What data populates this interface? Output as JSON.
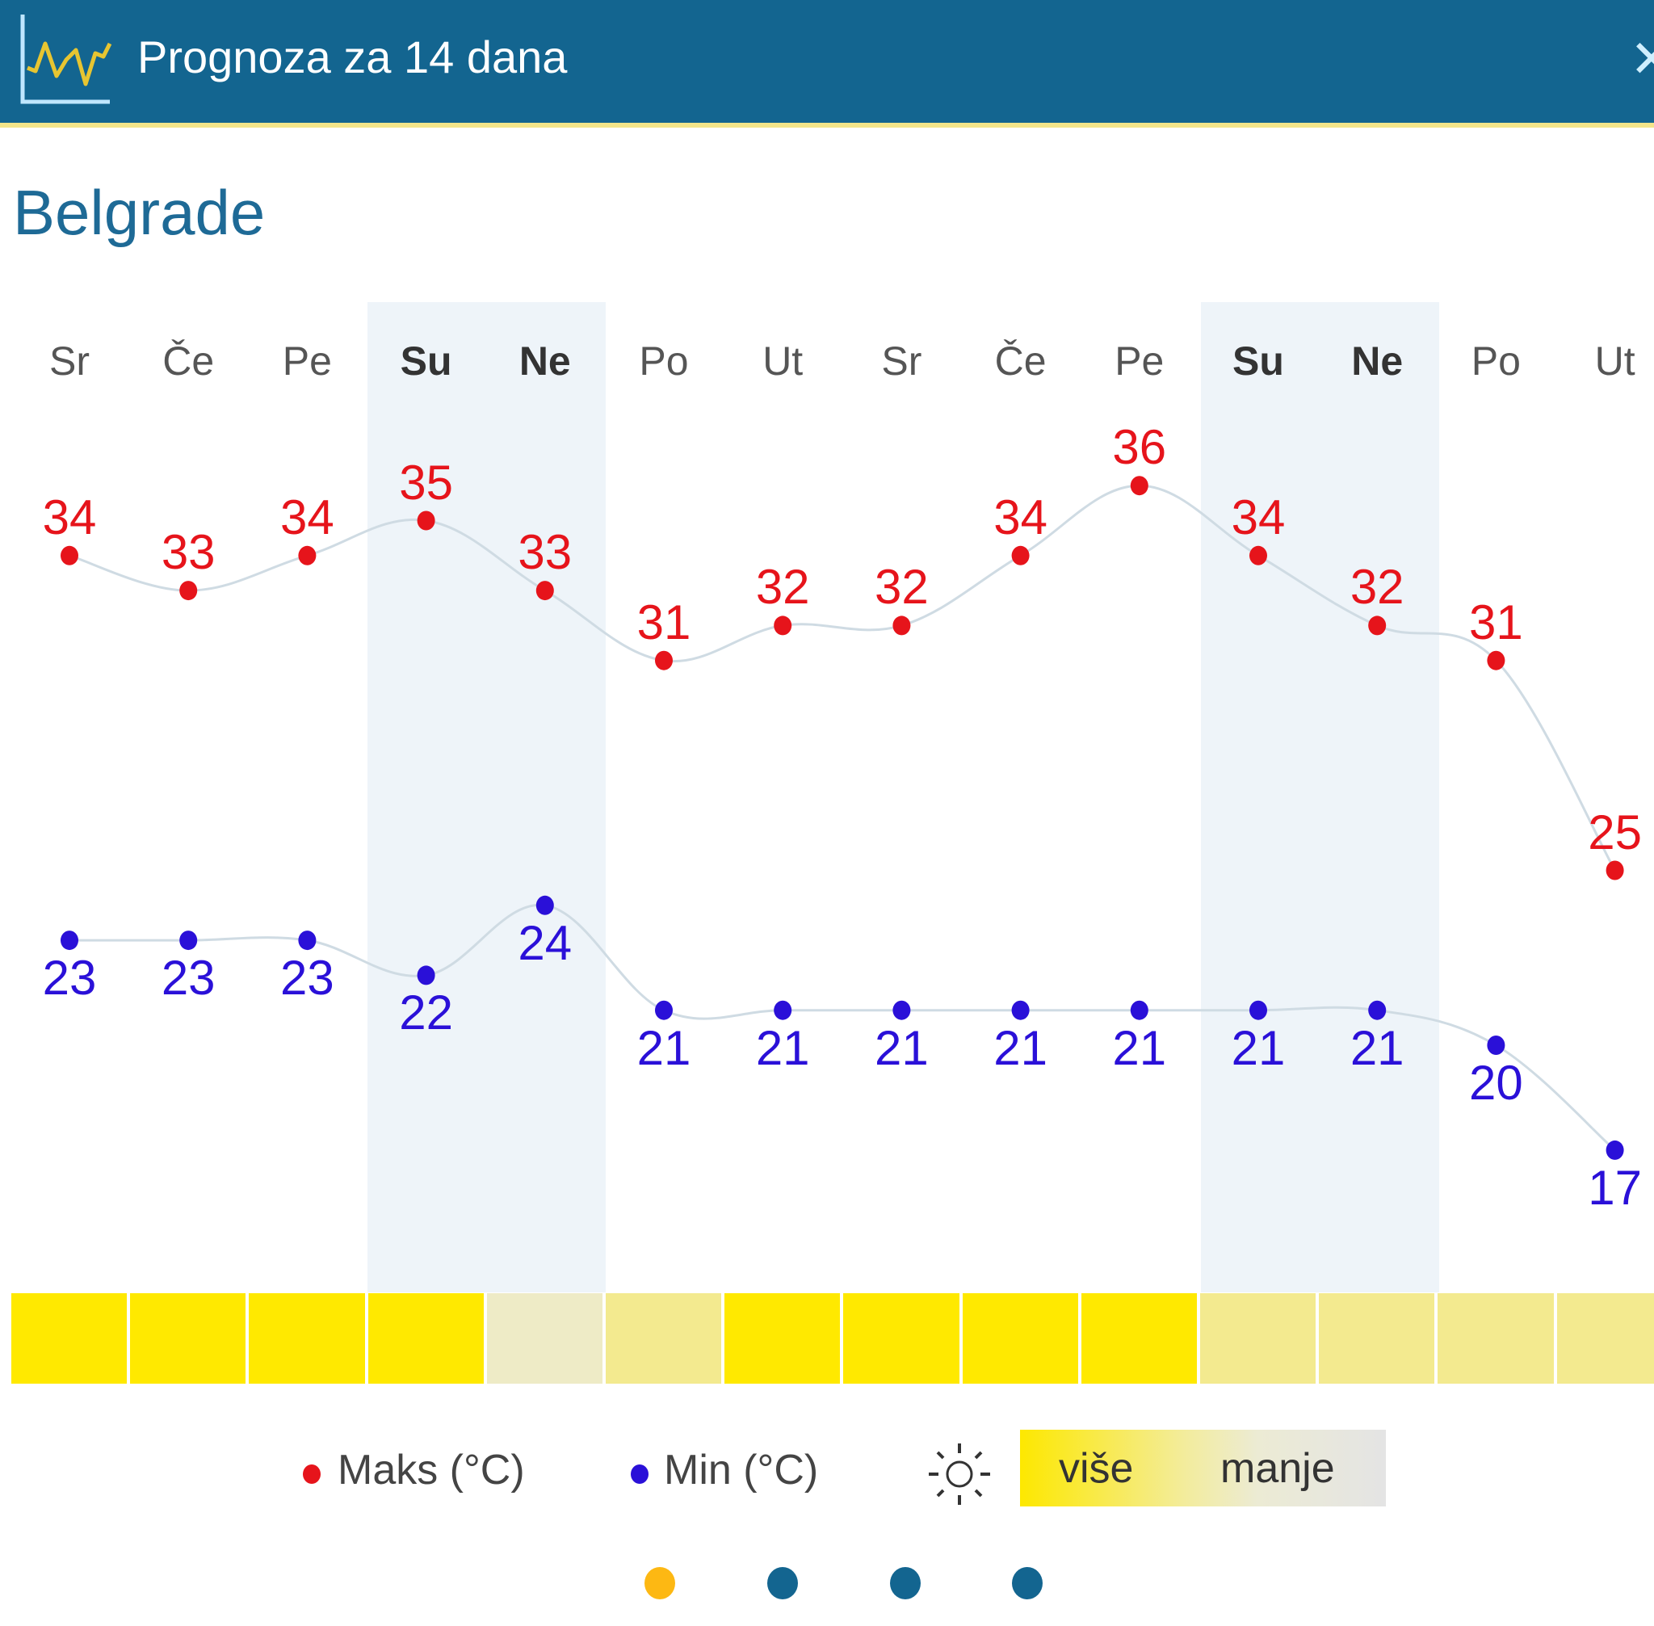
{
  "header": {
    "title": "Prognoza za 14 dana",
    "icon": "line-chart-icon",
    "close_icon": "close-icon",
    "background": "#136590",
    "accent_border": "#f3e58a"
  },
  "city": "Belgrade",
  "days": [
    {
      "label": "Sr",
      "weekend": false
    },
    {
      "label": "Če",
      "weekend": false
    },
    {
      "label": "Pe",
      "weekend": false
    },
    {
      "label": "Su",
      "weekend": true
    },
    {
      "label": "Ne",
      "weekend": true
    },
    {
      "label": "Po",
      "weekend": false
    },
    {
      "label": "Ut",
      "weekend": false
    },
    {
      "label": "Sr",
      "weekend": false
    },
    {
      "label": "Če",
      "weekend": false
    },
    {
      "label": "Pe",
      "weekend": false
    },
    {
      "label": "Su",
      "weekend": true
    },
    {
      "label": "Ne",
      "weekend": true
    },
    {
      "label": "Po",
      "weekend": false
    },
    {
      "label": "Ut",
      "weekend": false
    }
  ],
  "sunshine": [
    "high",
    "high",
    "high",
    "high",
    "low",
    "medium",
    "high",
    "high",
    "high",
    "high",
    "medium",
    "medium",
    "medium",
    "medium"
  ],
  "sunshine_colors": {
    "high": "#ffe900",
    "medium": "#f3ea8f",
    "low": "#eeebc6"
  },
  "legend": {
    "max_label": "Maks (°C)",
    "min_label": "Min (°C)",
    "sun_icon": "sun-icon",
    "more_label": "više",
    "less_label": "manje",
    "max_color": "#e6141b",
    "min_color": "#2a10d8"
  },
  "pagination": {
    "dots": [
      {
        "active": true,
        "color": "#fdb813"
      },
      {
        "active": false,
        "color": "#136590"
      },
      {
        "active": false,
        "color": "#136590"
      },
      {
        "active": false,
        "color": "#136590"
      }
    ]
  },
  "chart_data": {
    "type": "line",
    "title": "Prognoza za 14 dana",
    "subtitle": "Belgrade",
    "xlabel": "",
    "ylabel": "",
    "categories": [
      "Sr",
      "Če",
      "Pe",
      "Su",
      "Ne",
      "Po",
      "Ut",
      "Sr",
      "Če",
      "Pe",
      "Su",
      "Ne",
      "Po",
      "Ut"
    ],
    "series": [
      {
        "name": "Maks (°C)",
        "color": "#e6141b",
        "values": [
          34,
          33,
          34,
          35,
          33,
          31,
          32,
          32,
          34,
          36,
          34,
          32,
          31,
          25
        ]
      },
      {
        "name": "Min (°C)",
        "color": "#2a10d8",
        "values": [
          23,
          23,
          23,
          22,
          24,
          21,
          21,
          21,
          21,
          21,
          21,
          21,
          20,
          17
        ]
      }
    ],
    "sunshine_levels": [
      "high",
      "high",
      "high",
      "high",
      "low",
      "medium",
      "high",
      "high",
      "high",
      "high",
      "medium",
      "medium",
      "medium",
      "medium"
    ],
    "grid": false,
    "legend_position": "bottom",
    "weekend_highlight": [
      3,
      4,
      10,
      11
    ]
  }
}
